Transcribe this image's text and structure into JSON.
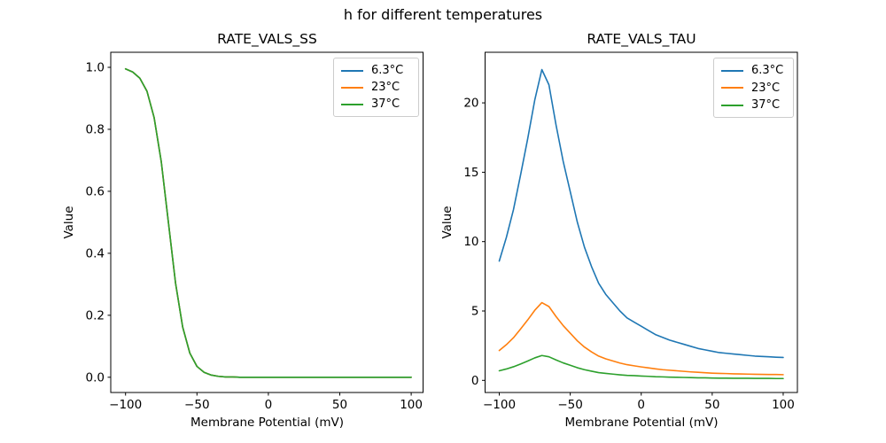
{
  "figure": {
    "suptitle": "h for different temperatures"
  },
  "legend": {
    "entries": [
      {
        "label": "6.3°C",
        "color": "#1f77b4"
      },
      {
        "label": "23°C",
        "color": "#ff7f0e"
      },
      {
        "label": "37°C",
        "color": "#2ca02c"
      }
    ],
    "position": "upper right"
  },
  "chart_data": [
    {
      "id": "ss",
      "type": "line",
      "title": "RATE_VALS_SS",
      "xlabel": "Membrane Potential (mV)",
      "ylabel": "Value",
      "xlim": [
        -110,
        110
      ],
      "ylim": [
        -0.05,
        1.05
      ],
      "grid": false,
      "legend_position": "upper right",
      "xticks": [
        -100,
        -50,
        0,
        50,
        100
      ],
      "xtick_labels": [
        "−100",
        "−50",
        "0",
        "50",
        "100"
      ],
      "yticks": [
        0.0,
        0.2,
        0.4,
        0.6,
        0.8,
        1.0
      ],
      "ytick_labels": [
        "0.0",
        "0.2",
        "0.4",
        "0.6",
        "0.8",
        "1.0"
      ],
      "note": "Steady-state curve is temperature independent: all three series overlap exactly, so only the last-drawn 37°C green line is visible. Sigmoid falls from 1 to 0 with midpoint near -70 mV.",
      "x": [
        -100,
        -95,
        -90,
        -85,
        -80,
        -75,
        -70,
        -65,
        -60,
        -55,
        -50,
        -45,
        -40,
        -35,
        -30,
        -25,
        -20,
        -15,
        -10,
        -5,
        0,
        5,
        10,
        15,
        20,
        25,
        30,
        35,
        40,
        45,
        50,
        55,
        60,
        65,
        70,
        75,
        80,
        85,
        90,
        95,
        100
      ],
      "series": [
        {
          "name": "6.3°C",
          "color": "#1f77b4",
          "values": [
            0.995,
            0.985,
            0.965,
            0.923,
            0.838,
            0.696,
            0.5,
            0.304,
            0.162,
            0.078,
            0.035,
            0.016,
            0.007,
            0.003,
            0.001,
            0.001,
            0.0,
            0.0,
            0.0,
            0.0,
            0.0,
            0.0,
            0.0,
            0.0,
            0.0,
            0.0,
            0.0,
            0.0,
            0.0,
            0.0,
            0.0,
            0.0,
            0.0,
            0.0,
            0.0,
            0.0,
            0.0,
            0.0,
            0.0,
            0.0,
            0.0
          ]
        },
        {
          "name": "23°C",
          "color": "#ff7f0e",
          "values": [
            0.995,
            0.985,
            0.965,
            0.923,
            0.838,
            0.696,
            0.5,
            0.304,
            0.162,
            0.078,
            0.035,
            0.016,
            0.007,
            0.003,
            0.001,
            0.001,
            0.0,
            0.0,
            0.0,
            0.0,
            0.0,
            0.0,
            0.0,
            0.0,
            0.0,
            0.0,
            0.0,
            0.0,
            0.0,
            0.0,
            0.0,
            0.0,
            0.0,
            0.0,
            0.0,
            0.0,
            0.0,
            0.0,
            0.0,
            0.0,
            0.0
          ]
        },
        {
          "name": "37°C",
          "color": "#2ca02c",
          "values": [
            0.995,
            0.985,
            0.965,
            0.923,
            0.838,
            0.696,
            0.5,
            0.304,
            0.162,
            0.078,
            0.035,
            0.016,
            0.007,
            0.003,
            0.001,
            0.001,
            0.0,
            0.0,
            0.0,
            0.0,
            0.0,
            0.0,
            0.0,
            0.0,
            0.0,
            0.0,
            0.0,
            0.0,
            0.0,
            0.0,
            0.0,
            0.0,
            0.0,
            0.0,
            0.0,
            0.0,
            0.0,
            0.0,
            0.0,
            0.0,
            0.0
          ]
        }
      ]
    },
    {
      "id": "tau",
      "type": "line",
      "title": "RATE_VALS_TAU",
      "xlabel": "Membrane Potential (mV)",
      "ylabel": "Value",
      "xlim": [
        -110,
        110
      ],
      "ylim": [
        -0.9,
        23.6
      ],
      "grid": false,
      "legend_position": "upper right",
      "xticks": [
        -100,
        -50,
        0,
        50,
        100
      ],
      "xtick_labels": [
        "−100",
        "−50",
        "0",
        "50",
        "100"
      ],
      "yticks": [
        0,
        5,
        10,
        15,
        20
      ],
      "ytick_labels": [
        "0",
        "5",
        "10",
        "15",
        "20"
      ],
      "note": "Time-constant curves peak near -70 mV: 6.3°C peaks at ~22.4, 23°C at ~5.6, 37°C at ~1.8 (each warmer temperature roughly 4x / 12.5x smaller than 6.3°C).",
      "x": [
        -100,
        -95,
        -90,
        -85,
        -80,
        -75,
        -70,
        -65,
        -60,
        -55,
        -50,
        -45,
        -40,
        -35,
        -30,
        -25,
        -20,
        -15,
        -10,
        -5,
        0,
        5,
        10,
        15,
        20,
        25,
        30,
        35,
        40,
        45,
        50,
        55,
        60,
        65,
        70,
        75,
        80,
        85,
        90,
        95,
        100
      ],
      "series": [
        {
          "name": "6.3°C",
          "color": "#1f77b4",
          "values": [
            8.6,
            10.3,
            12.3,
            14.8,
            17.4,
            20.2,
            22.4,
            21.3,
            18.4,
            15.8,
            13.6,
            11.4,
            9.6,
            8.2,
            7.0,
            6.2,
            5.6,
            5.0,
            4.5,
            4.2,
            3.9,
            3.6,
            3.3,
            3.1,
            2.9,
            2.75,
            2.6,
            2.45,
            2.3,
            2.2,
            2.1,
            2.0,
            1.95,
            1.9,
            1.85,
            1.8,
            1.75,
            1.72,
            1.7,
            1.67,
            1.65
          ]
        },
        {
          "name": "23°C",
          "color": "#ff7f0e",
          "values": [
            2.15,
            2.57,
            3.07,
            3.7,
            4.35,
            5.05,
            5.6,
            5.32,
            4.6,
            3.95,
            3.4,
            2.85,
            2.4,
            2.05,
            1.75,
            1.55,
            1.4,
            1.25,
            1.13,
            1.05,
            0.97,
            0.9,
            0.83,
            0.77,
            0.73,
            0.69,
            0.65,
            0.61,
            0.58,
            0.55,
            0.52,
            0.5,
            0.49,
            0.47,
            0.46,
            0.45,
            0.44,
            0.43,
            0.42,
            0.42,
            0.41
          ]
        },
        {
          "name": "37°C",
          "color": "#2ca02c",
          "values": [
            0.69,
            0.82,
            0.98,
            1.18,
            1.39,
            1.62,
            1.79,
            1.7,
            1.47,
            1.26,
            1.09,
            0.91,
            0.77,
            0.66,
            0.56,
            0.5,
            0.45,
            0.4,
            0.36,
            0.34,
            0.31,
            0.29,
            0.26,
            0.25,
            0.23,
            0.22,
            0.21,
            0.2,
            0.18,
            0.18,
            0.17,
            0.16,
            0.16,
            0.15,
            0.15,
            0.15,
            0.14,
            0.14,
            0.14,
            0.13,
            0.13
          ]
        }
      ]
    }
  ]
}
